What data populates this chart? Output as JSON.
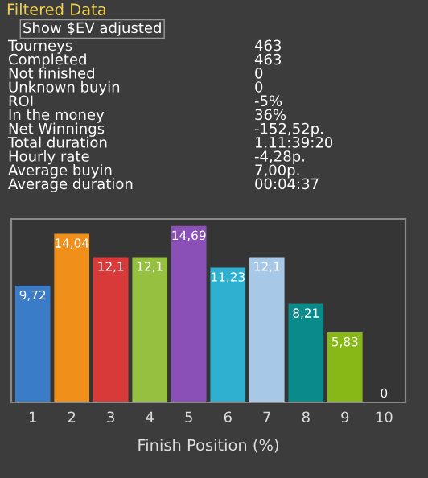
{
  "chart_data": {
    "type": "bar",
    "title": "Filtered Data",
    "subtitle": "Show $EV adjusted",
    "xlabel": "Finish Position (%)",
    "annotations": [
      "Tourneys",
      "463",
      "Completed",
      "463",
      "Not finished",
      "0",
      "Unknown buyin",
      "0",
      "ROI",
      "-5%",
      "In the money",
      "36%",
      "Net Winnings",
      "-152,52p.",
      "Total duration",
      "1.11:39:20",
      "Hourly rate",
      "-4,28p.",
      "Average buyin",
      "7,00p.",
      "Average duration",
      "00:04:37"
    ],
    "categories": [
      "1",
      "2",
      "3",
      "4",
      "5",
      "6",
      "7",
      "8",
      "9",
      "10"
    ],
    "values": [
      9.72,
      14.04,
      12.1,
      12.1,
      14.69,
      11.23,
      12.1,
      8.21,
      5.83,
      0
    ],
    "value_labels": [
      "9,72",
      "14,04",
      "12,1",
      "12,1",
      "14,69",
      "11,23",
      "12,1",
      "8,21",
      "5,83",
      "0"
    ],
    "colors": [
      "#3a7cc8",
      "#f0901a",
      "#d83a3a",
      "#96c040",
      "#8a50b8",
      "#30b0d0",
      "#a8c8e8",
      "#0a8a8a",
      "#88b818",
      "#888888"
    ]
  }
}
